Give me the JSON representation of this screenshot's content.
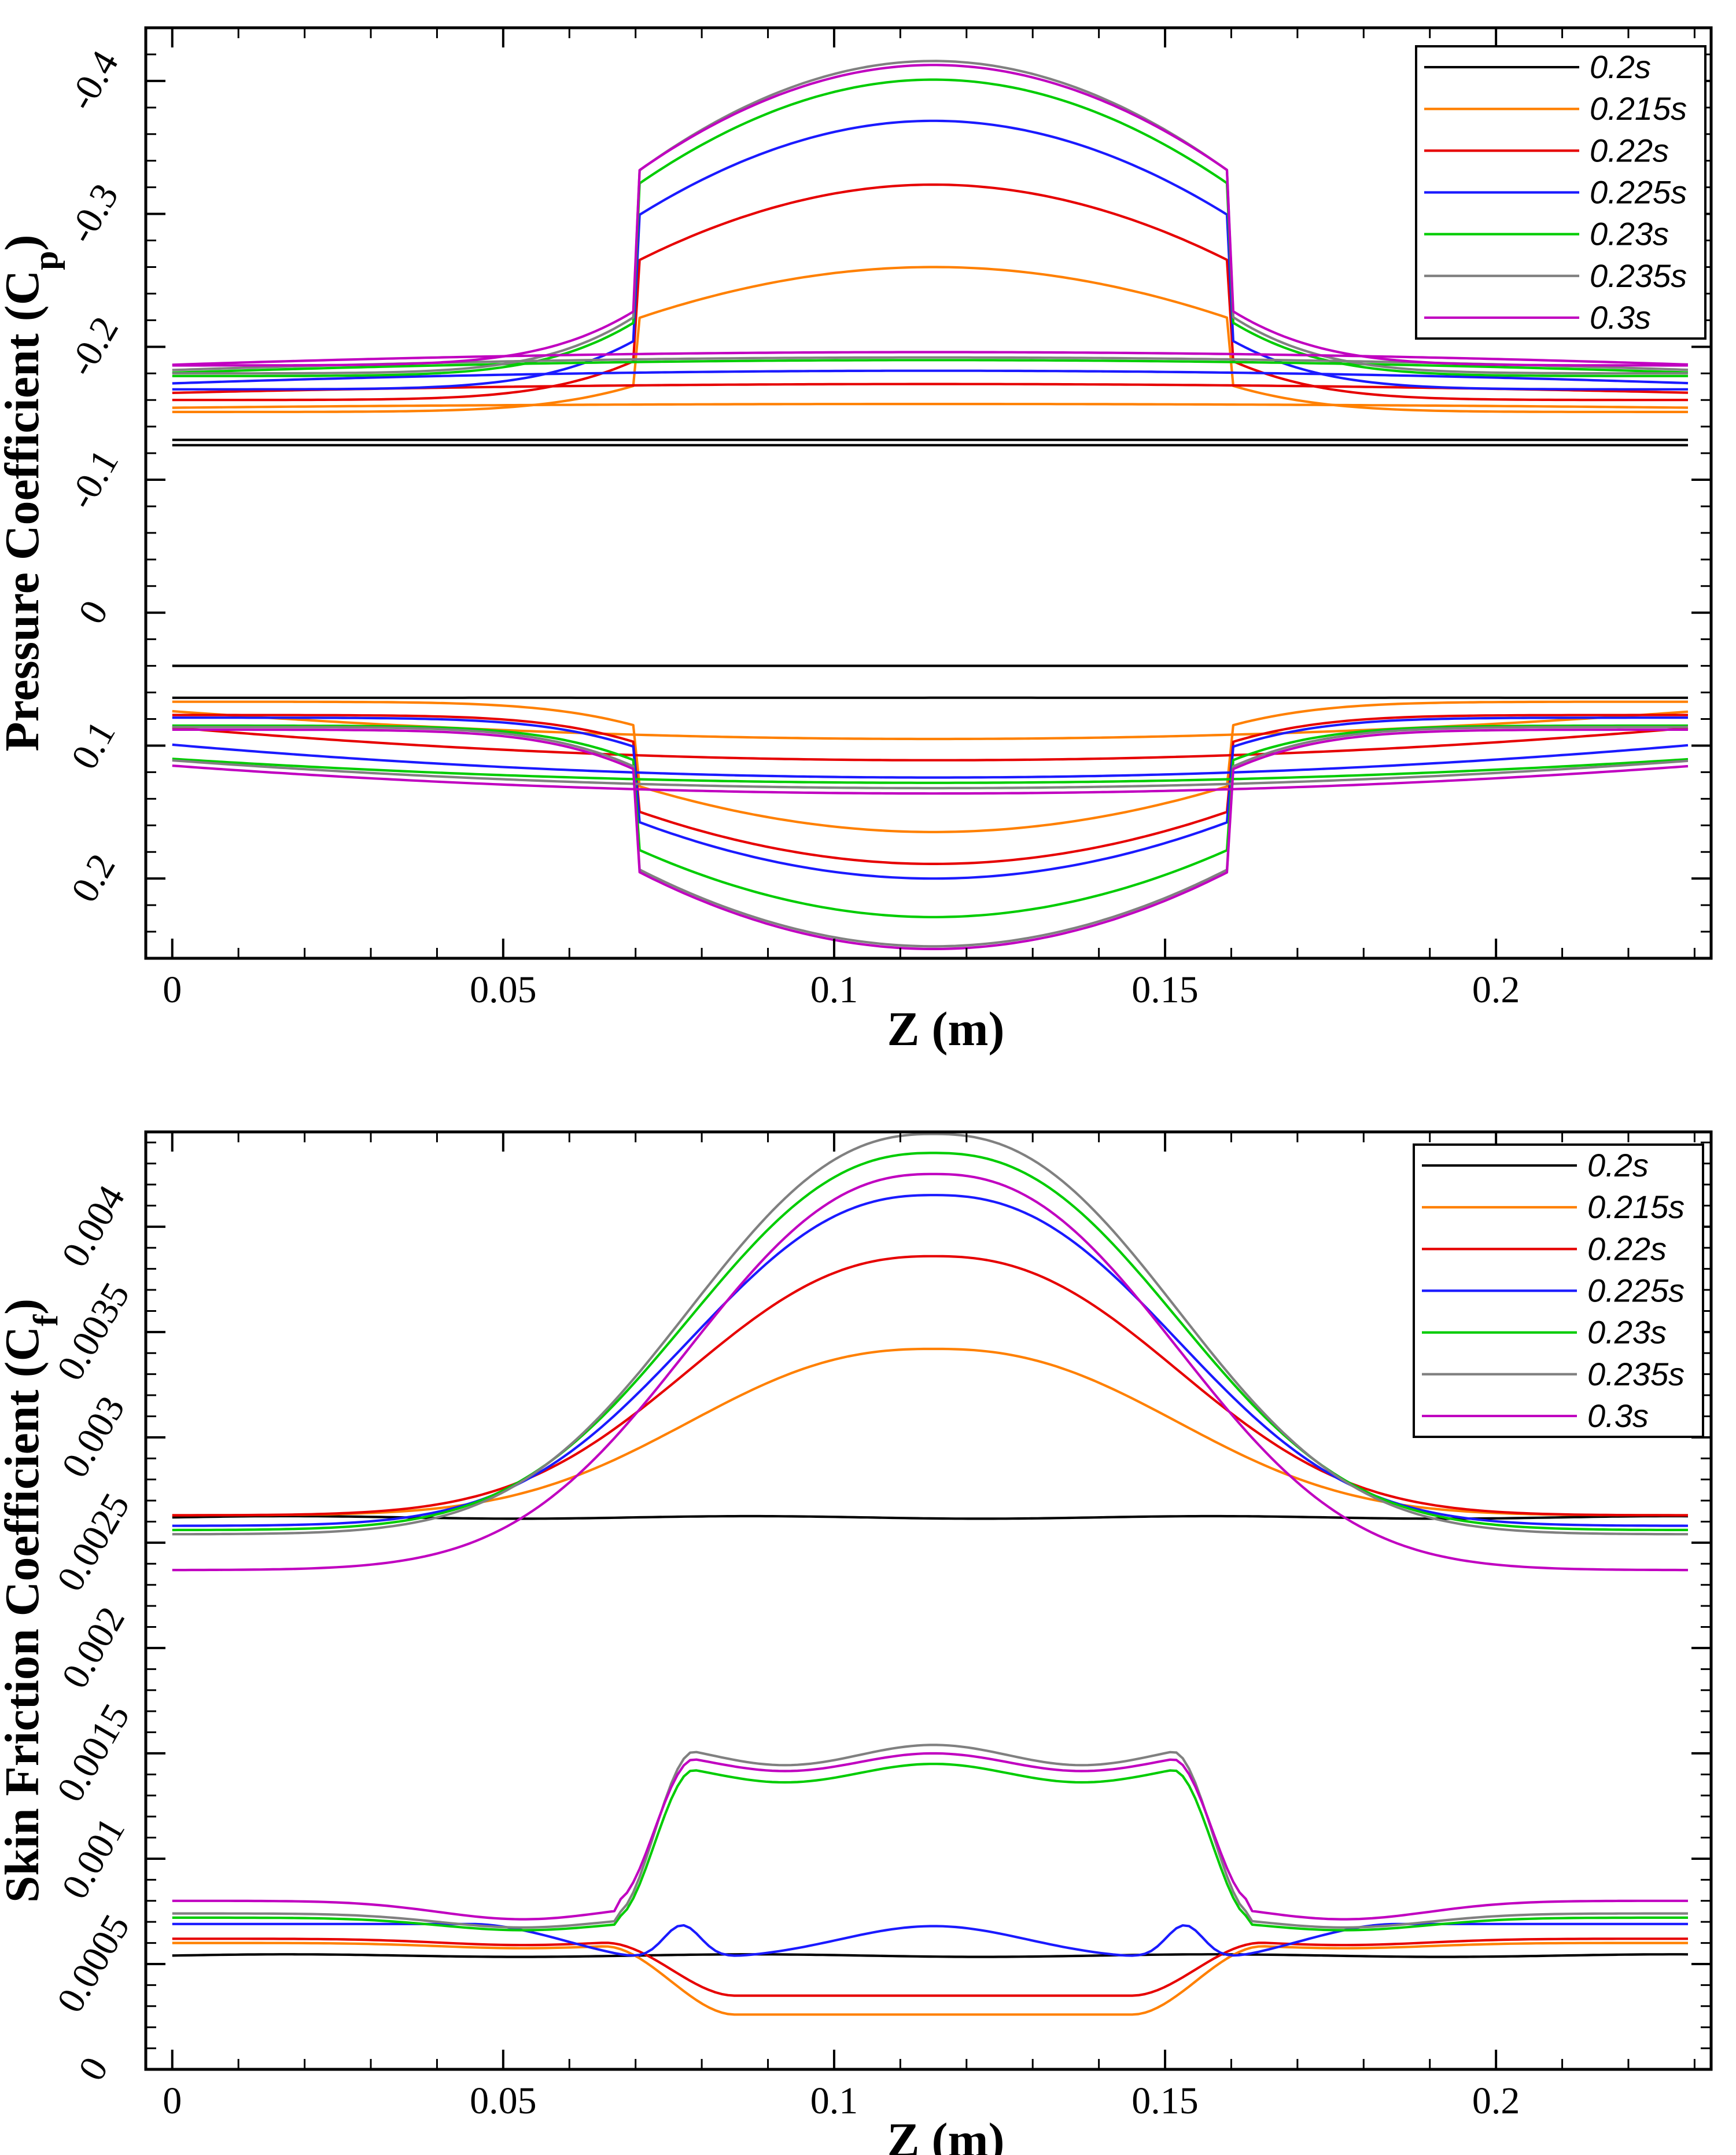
{
  "colors": {
    "0.2s": "#000000",
    "0.215s": "#ff8000",
    "0.22s": "#e60000",
    "0.225s": "#1a1aff",
    "0.23s": "#00cc00",
    "0.235s": "#808080",
    "0.3s": "#c000c0"
  },
  "chart_data": [
    {
      "type": "line",
      "title": "",
      "xlabel": "Z (m)",
      "ylabel": "Pressure Coefficient (Cp)",
      "ylabel_main": "Pressure Coefficient (C",
      "ylabel_sub": "p",
      "ylabel_close": ")",
      "xlim": [
        -0.004,
        0.2325
      ],
      "ylim": [
        0.26,
        -0.44
      ],
      "y_inverted": true,
      "grid": false,
      "legend_position": "top-right",
      "xticks": [
        0,
        0.05,
        0.1,
        0.15,
        0.2
      ],
      "xtick_labels": [
        "0",
        "0.05",
        "0.1",
        "0.15",
        "0.2"
      ],
      "yticks": [
        -0.4,
        -0.3,
        -0.2,
        -0.1,
        0,
        0.1,
        0.2
      ],
      "ytick_labels": [
        "-0.4",
        "-0.3",
        "-0.2",
        "-0.1",
        "0",
        "0.1",
        "0.2"
      ],
      "series": [
        {
          "name": "0.2s",
          "upper": {
            "edge": -0.13,
            "peak": -0.13
          },
          "lower": {
            "edge": 0.04,
            "peak": 0.04
          },
          "upper2": {
            "edge": -0.126,
            "peak": -0.126
          },
          "lower2": {
            "edge": 0.064,
            "peak": 0.064
          }
        },
        {
          "name": "0.215s",
          "upper": {
            "edge": -0.151,
            "peak": -0.26
          },
          "lower": {
            "edge": 0.067,
            "peak": 0.165
          },
          "upper2": {
            "edge": -0.154,
            "peak": -0.157
          },
          "lower2": {
            "edge": 0.073,
            "peak": 0.095
          }
        },
        {
          "name": "0.22s",
          "upper": {
            "edge": -0.16,
            "peak": -0.322
          },
          "lower": {
            "edge": 0.077,
            "peak": 0.189
          },
          "upper2": {
            "edge": -0.165,
            "peak": -0.172
          },
          "lower2": {
            "edge": 0.085,
            "peak": 0.111
          }
        },
        {
          "name": "0.225s",
          "upper": {
            "edge": -0.168,
            "peak": -0.37
          },
          "lower": {
            "edge": 0.079,
            "peak": 0.2
          },
          "upper2": {
            "edge": -0.172,
            "peak": -0.182
          },
          "lower2": {
            "edge": 0.098,
            "peak": 0.124
          }
        },
        {
          "name": "0.23s",
          "upper": {
            "edge": -0.178,
            "peak": -0.401
          },
          "lower": {
            "edge": 0.085,
            "peak": 0.229
          },
          "upper2": {
            "edge": -0.18,
            "peak": -0.19
          },
          "lower2": {
            "edge": 0.109,
            "peak": 0.128
          }
        },
        {
          "name": "0.235s",
          "upper": {
            "edge": -0.18,
            "peak": -0.415
          },
          "lower": {
            "edge": 0.086,
            "peak": 0.251
          },
          "upper2": {
            "edge": -0.182,
            "peak": -0.192
          },
          "lower2": {
            "edge": 0.11,
            "peak": 0.132
          }
        },
        {
          "name": "0.3s",
          "upper": {
            "edge": -0.186,
            "peak": -0.412
          },
          "lower": {
            "edge": 0.088,
            "peak": 0.253
          },
          "upper2": {
            "edge": -0.186,
            "peak": -0.196
          },
          "lower2": {
            "edge": 0.114,
            "peak": 0.136
          }
        }
      ]
    },
    {
      "type": "line",
      "title": "",
      "xlabel": "Z (m)",
      "ylabel": "Skin Friction Coefficient (Cf)",
      "ylabel_main": "Skin Friction Coefficient (C",
      "ylabel_sub": "f",
      "ylabel_close": ")",
      "xlim": [
        -0.004,
        0.2325
      ],
      "ylim": [
        0,
        0.00445
      ],
      "grid": false,
      "legend_position": "top-right",
      "xticks": [
        0,
        0.05,
        0.1,
        0.15,
        0.2
      ],
      "xtick_labels": [
        "0",
        "0.05",
        "0.1",
        "0.15",
        "0.2"
      ],
      "yticks": [
        0,
        0.0005,
        0.001,
        0.0015,
        0.002,
        0.0025,
        0.003,
        0.0035,
        0.004
      ],
      "ytick_labels": [
        "0",
        "0.0005",
        "0.001",
        "0.0015",
        "0.002",
        "0.0025",
        "0.003",
        "0.0035",
        "0.004"
      ],
      "series": [
        {
          "name": "0.2s",
          "upper": {
            "edge": 0.00262,
            "peak": 0.00262
          },
          "lower": {
            "edge": 0.00054,
            "peak": 0.00054
          }
        },
        {
          "name": "0.215s",
          "upper": {
            "edge": 0.00263,
            "peak": 0.00342
          },
          "lower": {
            "edge": 0.0006,
            "peak": 0.00026
          }
        },
        {
          "name": "0.22s",
          "upper": {
            "edge": 0.00263,
            "peak": 0.00386
          },
          "lower": {
            "edge": 0.00062,
            "peak": 0.00035
          }
        },
        {
          "name": "0.225s",
          "upper": {
            "edge": 0.00258,
            "peak": 0.00415
          },
          "lower": {
            "edge": 0.00069,
            "peak": 0.00068
          }
        },
        {
          "name": "0.23s",
          "upper": {
            "edge": 0.00256,
            "peak": 0.00435
          },
          "lower": {
            "edge": 0.00072,
            "peak": 0.00145
          }
        },
        {
          "name": "0.235s",
          "upper": {
            "edge": 0.00254,
            "peak": 0.00444
          },
          "lower": {
            "edge": 0.00074,
            "peak": 0.00154
          }
        },
        {
          "name": "0.3s",
          "upper": {
            "edge": 0.00237,
            "peak": 0.00425
          },
          "lower": {
            "edge": 0.0008,
            "peak": 0.0015
          }
        }
      ]
    }
  ]
}
